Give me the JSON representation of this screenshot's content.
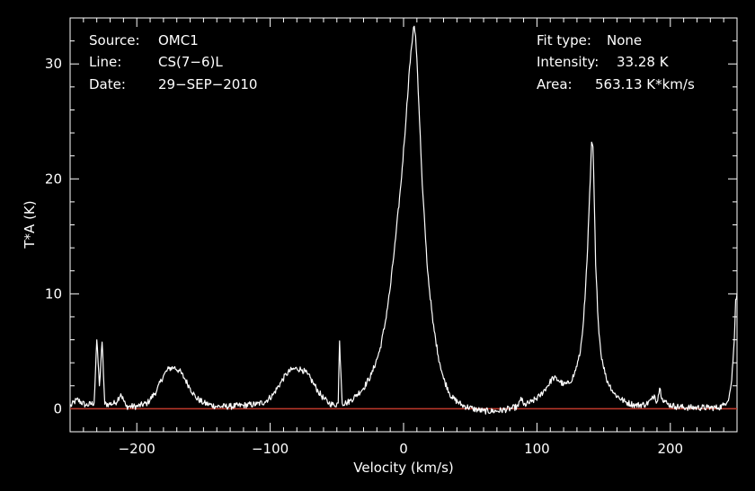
{
  "chart_data": {
    "type": "line",
    "xlabel": "Velocity (km/s)",
    "ylabel": "T*A (K)",
    "xlim": [
      -250,
      250
    ],
    "ylim": [
      -2,
      34
    ],
    "x_ticks": [
      -200,
      -100,
      0,
      100,
      200
    ],
    "x_tick_labels": [
      "−200",
      "−100",
      "0",
      "100",
      "200"
    ],
    "y_ticks": [
      0,
      10,
      20,
      30
    ],
    "y_tick_labels": [
      "0",
      "10",
      "20",
      "30"
    ],
    "grid": false,
    "baseline": 0,
    "colors": {
      "background": "#000000",
      "spectrum": "#ffffff",
      "baseline": "#c0392b"
    },
    "info_left": [
      {
        "label": "Source:",
        "value": "OMC1"
      },
      {
        "label": "Line:",
        "value": "CS(7−6)L"
      },
      {
        "label": "Date:",
        "value": "29−SEP−2010"
      }
    ],
    "info_right": [
      {
        "label": "Fit type:",
        "value": "None"
      },
      {
        "label": "Intensity:",
        "value": "33.28 K"
      },
      {
        "label": "Area:",
        "value": "563.13 K*km/s"
      }
    ],
    "series": [
      {
        "x": [
          -250,
          -245,
          -238,
          -232,
          -230,
          -228,
          -226,
          -224,
          -221,
          -216,
          -212,
          -208,
          -200,
          -192,
          -185,
          -180,
          -176,
          -172,
          -168,
          -164,
          -160,
          -156,
          -150,
          -140,
          -130,
          -120,
          -110,
          -104,
          -98,
          -92,
          -88,
          -84,
          -80,
          -76,
          -72,
          -68,
          -64,
          -60,
          -56,
          -52,
          -49,
          -48,
          -46,
          -43,
          -40,
          -36,
          -30,
          -24,
          -18,
          -14,
          -10,
          -6,
          -2,
          2,
          4,
          6,
          7,
          8,
          9,
          10,
          12,
          14,
          18,
          22,
          26,
          30,
          36,
          44,
          52,
          60,
          70,
          80,
          86,
          88,
          90,
          96,
          102,
          108,
          112,
          116,
          120,
          124,
          128,
          132,
          134,
          136,
          138,
          140,
          141,
          142,
          143,
          144,
          146,
          148,
          152,
          158,
          166,
          174,
          182,
          186,
          188,
          190,
          192,
          194,
          198,
          204,
          212,
          220,
          228,
          236,
          240,
          244,
          246,
          248,
          249,
          250
        ],
        "y": [
          0.2,
          0.8,
          0.3,
          0.5,
          6.0,
          2.0,
          5.8,
          0.4,
          0.4,
          0.5,
          1.3,
          0.2,
          0.2,
          0.5,
          1.6,
          2.9,
          3.5,
          3.6,
          3.3,
          2.6,
          1.8,
          1.0,
          0.5,
          0.2,
          0.2,
          0.3,
          0.4,
          0.6,
          1.2,
          2.3,
          3.0,
          3.4,
          3.5,
          3.4,
          3.0,
          2.3,
          1.5,
          0.9,
          0.5,
          0.3,
          0.5,
          5.9,
          0.5,
          0.5,
          0.7,
          1.1,
          1.8,
          3.0,
          5.0,
          7.3,
          10.5,
          14.8,
          19.5,
          25.5,
          29.0,
          31.5,
          32.6,
          33.28,
          32.4,
          30.5,
          25.0,
          19.5,
          12.0,
          7.5,
          4.6,
          2.6,
          1.0,
          0.3,
          0.0,
          -0.2,
          -0.2,
          0.0,
          0.2,
          1.0,
          0.3,
          0.6,
          1.1,
          2.0,
          2.7,
          2.5,
          2.1,
          2.2,
          3.0,
          4.6,
          6.5,
          9.5,
          14.0,
          20.0,
          23.2,
          22.8,
          18.0,
          12.5,
          7.5,
          4.8,
          2.6,
          1.3,
          0.6,
          0.3,
          0.4,
          0.8,
          1.2,
          0.6,
          1.8,
          0.9,
          0.4,
          0.2,
          0.1,
          0.1,
          0.1,
          0.1,
          0.3,
          1.0,
          2.5,
          6.0,
          9.5,
          10.0
        ]
      }
    ]
  }
}
